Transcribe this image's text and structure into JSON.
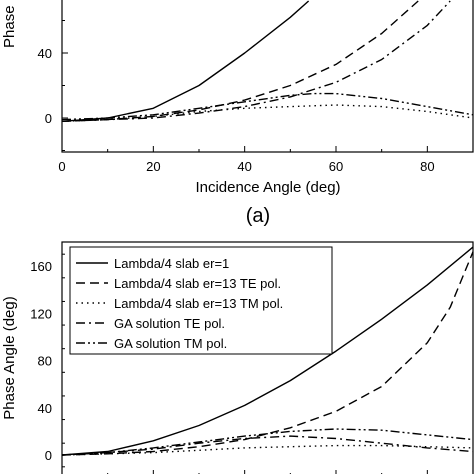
{
  "chart_data": [
    {
      "panel_label": "(a)",
      "type": "line",
      "xlabel": "Incidence Angle (deg)",
      "ylabel": "Phase",
      "xlim": [
        0,
        90
      ],
      "ylim": [
        -20,
        80
      ],
      "x_ticks": [
        0,
        20,
        40,
        60,
        80
      ],
      "y_ticks": [
        0,
        40
      ],
      "grid": false,
      "series": [
        {
          "style": "solid",
          "x": [
            0,
            10,
            20,
            30,
            40,
            50,
            54
          ],
          "y": [
            -2,
            0,
            6,
            20,
            40,
            62,
            72
          ]
        },
        {
          "style": "dashed",
          "x": [
            0,
            10,
            20,
            30,
            40,
            50,
            60,
            70,
            78
          ],
          "y": [
            -2,
            -1,
            1,
            5,
            11,
            20,
            33,
            52,
            72
          ]
        },
        {
          "style": "dashdot",
          "x": [
            0,
            10,
            20,
            30,
            40,
            50,
            60,
            70,
            80,
            85
          ],
          "y": [
            -2,
            -1,
            0,
            3,
            7,
            13,
            22,
            36,
            57,
            72
          ]
        },
        {
          "style": "dotted",
          "x": [
            0,
            10,
            20,
            30,
            40,
            50,
            60,
            70,
            80,
            90
          ],
          "y": [
            -2,
            -1,
            1,
            4,
            6,
            7,
            8,
            7,
            4,
            0
          ]
        },
        {
          "style": "dashdotdot",
          "x": [
            0,
            10,
            20,
            30,
            40,
            50,
            55,
            60,
            70,
            80,
            90
          ],
          "y": [
            -1,
            0,
            2,
            6,
            10,
            14,
            15,
            15,
            12,
            7,
            2
          ]
        }
      ]
    },
    {
      "type": "line",
      "xlabel": "",
      "ylabel": "Phase Angle (deg)",
      "xlim": [
        0,
        90
      ],
      "ylim": [
        -10,
        180
      ],
      "y_ticks": [
        0,
        40,
        80,
        120,
        160
      ],
      "grid": false,
      "legend_position": "top-left",
      "series": [
        {
          "name": "Lambda/4 slab er=1",
          "style": "solid",
          "x": [
            0,
            10,
            20,
            30,
            40,
            50,
            60,
            70,
            80,
            90
          ],
          "y": [
            0,
            3,
            12,
            25,
            42,
            63,
            88,
            115,
            144,
            176
          ]
        },
        {
          "name": "Lambda/4 slab er=13 TE pol.",
          "style": "dashed",
          "x": [
            0,
            10,
            20,
            30,
            40,
            50,
            60,
            70,
            80,
            85,
            90
          ],
          "y": [
            0,
            1,
            3,
            7,
            13,
            23,
            37,
            58,
            95,
            125,
            172
          ]
        },
        {
          "name": "Lambda/4 slab er=13 TM pol.",
          "style": "dotted",
          "x": [
            0,
            10,
            20,
            30,
            40,
            50,
            60,
            70,
            80,
            90
          ],
          "y": [
            0,
            1,
            2,
            4,
            6,
            7,
            8,
            8,
            7,
            6
          ]
        },
        {
          "name": "GA solution TE pol.",
          "style": "dashdot",
          "x": [
            0,
            10,
            20,
            30,
            40,
            50,
            60,
            70,
            80,
            90
          ],
          "y": [
            0,
            2,
            5,
            10,
            14,
            16,
            14,
            10,
            6,
            3
          ]
        },
        {
          "name": "GA solution TM pol.",
          "style": "dashdotdot",
          "x": [
            0,
            10,
            20,
            30,
            40,
            50,
            60,
            70,
            80,
            90
          ],
          "y": [
            0,
            2,
            6,
            11,
            16,
            20,
            22,
            21,
            17,
            13
          ]
        }
      ]
    }
  ]
}
